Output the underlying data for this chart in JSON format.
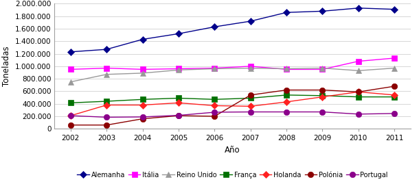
{
  "years": [
    2002,
    2003,
    2004,
    2005,
    2006,
    2007,
    2008,
    2009,
    2010,
    2011
  ],
  "series": {
    "Alemanha": {
      "values": [
        1230000,
        1270000,
        1430000,
        1520000,
        1630000,
        1720000,
        1860000,
        1880000,
        1930000,
        1910000
      ],
      "color": "#00008B",
      "marker": "D",
      "markersize": 5
    },
    "Itália": {
      "values": [
        950000,
        970000,
        950000,
        960000,
        970000,
        1000000,
        950000,
        950000,
        1080000,
        1130000
      ],
      "color": "#FF00FF",
      "marker": "s",
      "markersize": 6
    },
    "Reino Unido": {
      "values": [
        750000,
        870000,
        890000,
        940000,
        960000,
        970000,
        960000,
        970000,
        930000,
        970000
      ],
      "color": "#999999",
      "marker": "^",
      "markersize": 6
    },
    "França": {
      "values": [
        415000,
        440000,
        470000,
        490000,
        470000,
        490000,
        540000,
        530000,
        510000,
        510000
      ],
      "color": "#007000",
      "marker": "s",
      "markersize": 6
    },
    "Holanda": {
      "values": [
        210000,
        380000,
        380000,
        415000,
        370000,
        360000,
        430000,
        510000,
        590000,
        540000
      ],
      "color": "#FF2020",
      "marker": "D",
      "markersize": 5
    },
    "Polónia": {
      "values": [
        60000,
        60000,
        160000,
        210000,
        200000,
        540000,
        620000,
        620000,
        590000,
        680000
      ],
      "color": "#8B0000",
      "marker": "o",
      "markersize": 6
    },
    "Portugal": {
      "values": [
        210000,
        185000,
        190000,
        215000,
        265000,
        270000,
        270000,
        270000,
        235000,
        245000
      ],
      "color": "#8B008B",
      "marker": "o",
      "markersize": 6
    }
  },
  "xlabel": "Año",
  "ylabel": "Toneladas",
  "ylim": [
    0,
    2000000
  ],
  "yticks": [
    0,
    200000,
    400000,
    600000,
    800000,
    1000000,
    1200000,
    1400000,
    1600000,
    1800000,
    2000000
  ],
  "legend_order": [
    "Alemanha",
    "Itália",
    "Reino Unido",
    "França",
    "Holanda",
    "Polónia",
    "Portugal"
  ],
  "background_color": "#FFFFFF",
  "grid_color": "#D0D0D0"
}
